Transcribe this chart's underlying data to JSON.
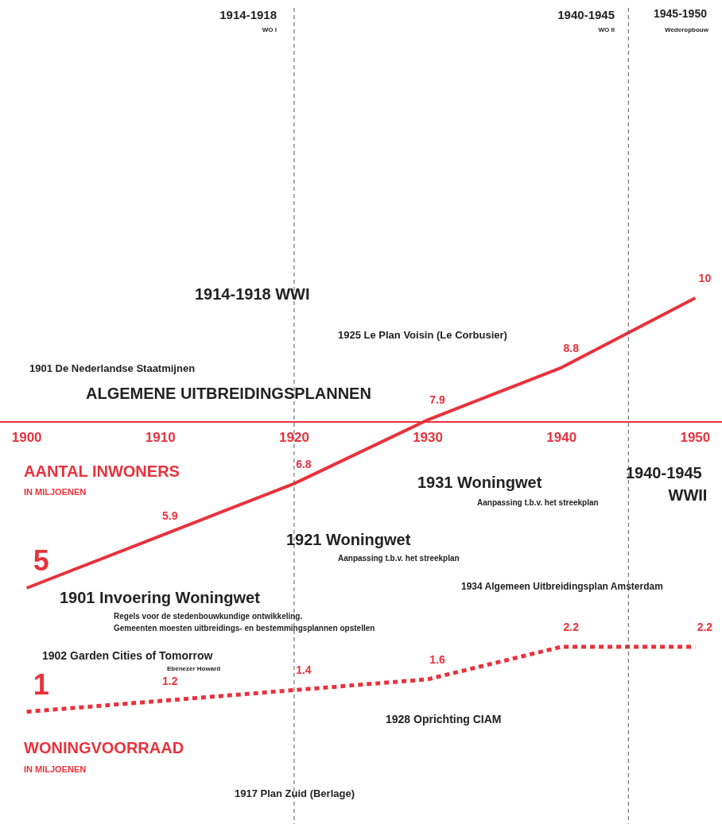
{
  "chart_data": {
    "type": "line",
    "x": [
      1900,
      1910,
      1920,
      1930,
      1940,
      1950
    ],
    "series": [
      {
        "name": "AANTAL INWONERS",
        "color": "#e8323c",
        "values": [
          5,
          5.9,
          6.8,
          7.9,
          8.8,
          10
        ],
        "line_style": "solid"
      },
      {
        "name": "WONINGVOORRAAD",
        "color": "#e8323c",
        "values": [
          1,
          1.2,
          1.4,
          1.6,
          2.2,
          2.2
        ],
        "axis": "y2",
        "line_style": "dotted"
      }
    ],
    "xlim": [
      1898,
      1952
    ],
    "xticks": [
      1900,
      1910,
      1920,
      1930,
      1940,
      1950
    ],
    "ylim": [
      1,
      15
    ],
    "y2lim": [
      -1,
      14
    ],
    "tick_labels": "x",
    "data_labels": true,
    "grid": false,
    "legend": false,
    "marker": "none",
    "ref_lines": [
      {
        "axis": "x",
        "value": 1920,
        "color": "#555555",
        "line_style": "dashed"
      },
      {
        "axis": "x",
        "value": 1945,
        "color": "#555555",
        "line_style": "dashed"
      }
    ],
    "annotations": [
      "1914-1918",
      "1940-1945",
      "WO I",
      "WO II",
      "1945-1950",
      "Wederopbouw",
      "1914-1918 WWI",
      "1925 Le Plan Voisin (Le Corbusier)",
      "1901 De Nederlandse Staatmijnen",
      "ALGEMENE UITBREIDINGSPLANNEN",
      "IN MILJOENEN",
      "1931 Woningwet",
      "Aanpassing t.b.v. het streekplan",
      "1940-1945",
      "WWII",
      "1921 Woningwet",
      "Aanpassing t.b.v. het streekplan",
      "1934 Algemeen Uitbreidingsplan Amsterdam",
      "1901 Invoering Woningwet",
      "Regels voor de stedenbouwkundige ontwikkeling.",
      "Gemeenten moesten uitbreidings- en bestemmingsplannen opstellen",
      "1902 Garden Cities of Tomorrow",
      "Ebenezer Howard",
      "1928 Oprichting CIAM",
      "IN MILJOENEN",
      "1917 Plan Zuid (Berlage)"
    ]
  }
}
